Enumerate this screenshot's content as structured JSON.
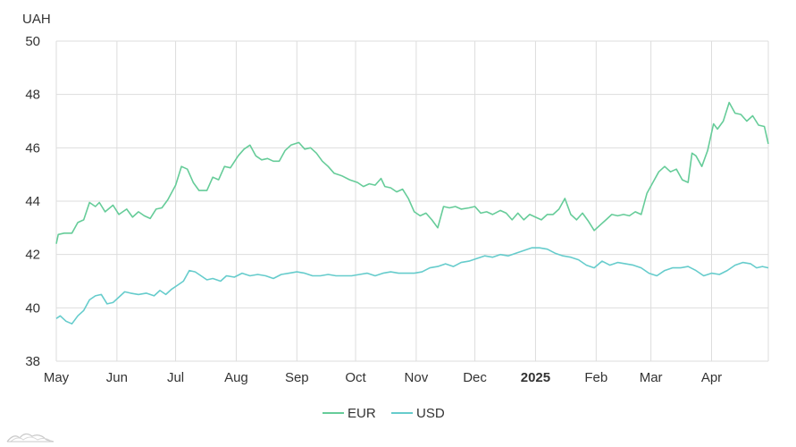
{
  "chart_data": {
    "type": "line",
    "ylabel": "UAH",
    "ylim": [
      38,
      50
    ],
    "y_ticks": [
      "50",
      "48",
      "46",
      "44",
      "42",
      "40",
      "38"
    ],
    "x_range": [
      "2024-05-01",
      "2025-04-30"
    ],
    "x_ticks": [
      {
        "label": "May",
        "date": "2024-05-01",
        "bold": false
      },
      {
        "label": "Jun",
        "date": "2024-06-01",
        "bold": false
      },
      {
        "label": "Jul",
        "date": "2024-07-01",
        "bold": false
      },
      {
        "label": "Aug",
        "date": "2024-08-01",
        "bold": false
      },
      {
        "label": "Sep",
        "date": "2024-09-01",
        "bold": false
      },
      {
        "label": "Oct",
        "date": "2024-10-01",
        "bold": false
      },
      {
        "label": "Nov",
        "date": "2024-11-01",
        "bold": false
      },
      {
        "label": "Dec",
        "date": "2024-12-01",
        "bold": false
      },
      {
        "label": "2025",
        "date": "2025-01-01",
        "bold": true
      },
      {
        "label": "Feb",
        "date": "2025-02-01",
        "bold": false
      },
      {
        "label": "Mar",
        "date": "2025-03-01",
        "bold": false
      },
      {
        "label": "Apr",
        "date": "2025-04-01",
        "bold": false
      }
    ],
    "grid": true,
    "legend_position": "bottom-center",
    "series": [
      {
        "name": "EUR",
        "color": "#66cc99",
        "points": [
          [
            "2024-05-01",
            42.4
          ],
          [
            "2024-05-02",
            42.75
          ],
          [
            "2024-05-05",
            42.8
          ],
          [
            "2024-05-09",
            42.8
          ],
          [
            "2024-05-12",
            43.2
          ],
          [
            "2024-05-15",
            43.3
          ],
          [
            "2024-05-18",
            43.95
          ],
          [
            "2024-05-21",
            43.8
          ],
          [
            "2024-05-23",
            43.95
          ],
          [
            "2024-05-26",
            43.6
          ],
          [
            "2024-05-30",
            43.85
          ],
          [
            "2024-06-02",
            43.5
          ],
          [
            "2024-06-06",
            43.7
          ],
          [
            "2024-06-09",
            43.4
          ],
          [
            "2024-06-12",
            43.6
          ],
          [
            "2024-06-15",
            43.45
          ],
          [
            "2024-06-18",
            43.35
          ],
          [
            "2024-06-21",
            43.7
          ],
          [
            "2024-06-24",
            43.75
          ],
          [
            "2024-06-27",
            44.05
          ],
          [
            "2024-07-01",
            44.6
          ],
          [
            "2024-07-04",
            45.3
          ],
          [
            "2024-07-07",
            45.2
          ],
          [
            "2024-07-10",
            44.7
          ],
          [
            "2024-07-13",
            44.4
          ],
          [
            "2024-07-17",
            44.4
          ],
          [
            "2024-07-20",
            44.9
          ],
          [
            "2024-07-23",
            44.8
          ],
          [
            "2024-07-26",
            45.3
          ],
          [
            "2024-07-29",
            45.25
          ],
          [
            "2024-08-02",
            45.7
          ],
          [
            "2024-08-05",
            45.95
          ],
          [
            "2024-08-08",
            46.1
          ],
          [
            "2024-08-11",
            45.7
          ],
          [
            "2024-08-14",
            45.55
          ],
          [
            "2024-08-17",
            45.6
          ],
          [
            "2024-08-20",
            45.5
          ],
          [
            "2024-08-23",
            45.5
          ],
          [
            "2024-08-26",
            45.9
          ],
          [
            "2024-08-29",
            46.1
          ],
          [
            "2024-09-02",
            46.2
          ],
          [
            "2024-09-05",
            45.95
          ],
          [
            "2024-09-08",
            46.0
          ],
          [
            "2024-09-11",
            45.8
          ],
          [
            "2024-09-14",
            45.5
          ],
          [
            "2024-09-17",
            45.3
          ],
          [
            "2024-09-20",
            45.05
          ],
          [
            "2024-09-24",
            44.95
          ],
          [
            "2024-09-28",
            44.8
          ],
          [
            "2024-10-02",
            44.7
          ],
          [
            "2024-10-05",
            44.55
          ],
          [
            "2024-10-08",
            44.65
          ],
          [
            "2024-10-11",
            44.6
          ],
          [
            "2024-10-14",
            44.85
          ],
          [
            "2024-10-16",
            44.55
          ],
          [
            "2024-10-19",
            44.5
          ],
          [
            "2024-10-22",
            44.35
          ],
          [
            "2024-10-25",
            44.45
          ],
          [
            "2024-10-28",
            44.1
          ],
          [
            "2024-10-31",
            43.6
          ],
          [
            "2024-11-03",
            43.45
          ],
          [
            "2024-11-06",
            43.55
          ],
          [
            "2024-11-09",
            43.3
          ],
          [
            "2024-11-12",
            43.0
          ],
          [
            "2024-11-15",
            43.8
          ],
          [
            "2024-11-18",
            43.75
          ],
          [
            "2024-11-21",
            43.8
          ],
          [
            "2024-11-24",
            43.7
          ],
          [
            "2024-11-28",
            43.75
          ],
          [
            "2024-12-01",
            43.8
          ],
          [
            "2024-12-04",
            43.55
          ],
          [
            "2024-12-07",
            43.6
          ],
          [
            "2024-12-10",
            43.5
          ],
          [
            "2024-12-14",
            43.65
          ],
          [
            "2024-12-17",
            43.55
          ],
          [
            "2024-12-20",
            43.3
          ],
          [
            "2024-12-23",
            43.55
          ],
          [
            "2024-12-26",
            43.3
          ],
          [
            "2024-12-29",
            43.5
          ],
          [
            "2025-01-01",
            43.4
          ],
          [
            "2025-01-04",
            43.3
          ],
          [
            "2025-01-07",
            43.5
          ],
          [
            "2025-01-10",
            43.5
          ],
          [
            "2025-01-13",
            43.7
          ],
          [
            "2025-01-16",
            44.1
          ],
          [
            "2025-01-19",
            43.5
          ],
          [
            "2025-01-22",
            43.3
          ],
          [
            "2025-01-25",
            43.55
          ],
          [
            "2025-01-28",
            43.25
          ],
          [
            "2025-01-31",
            42.9
          ],
          [
            "2025-02-03",
            43.1
          ],
          [
            "2025-02-06",
            43.3
          ],
          [
            "2025-02-09",
            43.5
          ],
          [
            "2025-02-12",
            43.45
          ],
          [
            "2025-02-15",
            43.5
          ],
          [
            "2025-02-18",
            43.45
          ],
          [
            "2025-02-21",
            43.6
          ],
          [
            "2025-02-24",
            43.5
          ],
          [
            "2025-02-27",
            44.3
          ],
          [
            "2025-03-02",
            44.7
          ],
          [
            "2025-03-05",
            45.1
          ],
          [
            "2025-03-08",
            45.3
          ],
          [
            "2025-03-11",
            45.1
          ],
          [
            "2025-03-14",
            45.2
          ],
          [
            "2025-03-17",
            44.8
          ],
          [
            "2025-03-20",
            44.7
          ],
          [
            "2025-03-22",
            45.8
          ],
          [
            "2025-03-24",
            45.7
          ],
          [
            "2025-03-27",
            45.3
          ],
          [
            "2025-03-30",
            45.9
          ],
          [
            "2025-04-02",
            46.9
          ],
          [
            "2025-04-04",
            46.7
          ],
          [
            "2025-04-07",
            47.0
          ],
          [
            "2025-04-10",
            47.7
          ],
          [
            "2025-04-13",
            47.3
          ],
          [
            "2025-04-16",
            47.25
          ],
          [
            "2025-04-19",
            47.0
          ],
          [
            "2025-04-22",
            47.2
          ],
          [
            "2025-04-25",
            46.85
          ],
          [
            "2025-04-28",
            46.8
          ],
          [
            "2025-04-30",
            46.15
          ]
        ]
      },
      {
        "name": "USD",
        "color": "#66cccc",
        "points": [
          [
            "2024-05-01",
            39.6
          ],
          [
            "2024-05-03",
            39.7
          ],
          [
            "2024-05-06",
            39.5
          ],
          [
            "2024-05-09",
            39.4
          ],
          [
            "2024-05-12",
            39.7
          ],
          [
            "2024-05-15",
            39.9
          ],
          [
            "2024-05-18",
            40.3
          ],
          [
            "2024-05-21",
            40.45
          ],
          [
            "2024-05-24",
            40.5
          ],
          [
            "2024-05-27",
            40.15
          ],
          [
            "2024-05-30",
            40.2
          ],
          [
            "2024-06-02",
            40.4
          ],
          [
            "2024-06-05",
            40.6
          ],
          [
            "2024-06-08",
            40.55
          ],
          [
            "2024-06-12",
            40.5
          ],
          [
            "2024-06-16",
            40.55
          ],
          [
            "2024-06-20",
            40.45
          ],
          [
            "2024-06-23",
            40.65
          ],
          [
            "2024-06-26",
            40.5
          ],
          [
            "2024-06-29",
            40.7
          ],
          [
            "2024-07-02",
            40.85
          ],
          [
            "2024-07-05",
            41.0
          ],
          [
            "2024-07-08",
            41.4
          ],
          [
            "2024-07-11",
            41.35
          ],
          [
            "2024-07-14",
            41.2
          ],
          [
            "2024-07-17",
            41.05
          ],
          [
            "2024-07-20",
            41.1
          ],
          [
            "2024-07-24",
            41.0
          ],
          [
            "2024-07-27",
            41.2
          ],
          [
            "2024-07-31",
            41.15
          ],
          [
            "2024-08-04",
            41.3
          ],
          [
            "2024-08-08",
            41.2
          ],
          [
            "2024-08-12",
            41.25
          ],
          [
            "2024-08-16",
            41.2
          ],
          [
            "2024-08-20",
            41.1
          ],
          [
            "2024-08-24",
            41.25
          ],
          [
            "2024-08-28",
            41.3
          ],
          [
            "2024-09-01",
            41.35
          ],
          [
            "2024-09-05",
            41.3
          ],
          [
            "2024-09-09",
            41.2
          ],
          [
            "2024-09-13",
            41.2
          ],
          [
            "2024-09-17",
            41.25
          ],
          [
            "2024-09-21",
            41.2
          ],
          [
            "2024-09-25",
            41.2
          ],
          [
            "2024-09-29",
            41.2
          ],
          [
            "2024-10-03",
            41.25
          ],
          [
            "2024-10-07",
            41.3
          ],
          [
            "2024-10-11",
            41.2
          ],
          [
            "2024-10-15",
            41.3
          ],
          [
            "2024-10-19",
            41.35
          ],
          [
            "2024-10-23",
            41.3
          ],
          [
            "2024-10-27",
            41.3
          ],
          [
            "2024-10-31",
            41.3
          ],
          [
            "2024-11-04",
            41.35
          ],
          [
            "2024-11-08",
            41.5
          ],
          [
            "2024-11-12",
            41.55
          ],
          [
            "2024-11-16",
            41.65
          ],
          [
            "2024-11-20",
            41.55
          ],
          [
            "2024-11-24",
            41.7
          ],
          [
            "2024-11-28",
            41.75
          ],
          [
            "2024-12-02",
            41.85
          ],
          [
            "2024-12-06",
            41.95
          ],
          [
            "2024-12-10",
            41.9
          ],
          [
            "2024-12-14",
            42.0
          ],
          [
            "2024-12-18",
            41.95
          ],
          [
            "2024-12-22",
            42.05
          ],
          [
            "2024-12-26",
            42.15
          ],
          [
            "2024-12-30",
            42.25
          ],
          [
            "2025-01-03",
            42.25
          ],
          [
            "2025-01-07",
            42.2
          ],
          [
            "2025-01-11",
            42.05
          ],
          [
            "2025-01-15",
            41.95
          ],
          [
            "2025-01-19",
            41.9
          ],
          [
            "2025-01-23",
            41.8
          ],
          [
            "2025-01-27",
            41.6
          ],
          [
            "2025-01-31",
            41.5
          ],
          [
            "2025-02-04",
            41.75
          ],
          [
            "2025-02-08",
            41.6
          ],
          [
            "2025-02-12",
            41.7
          ],
          [
            "2025-02-16",
            41.65
          ],
          [
            "2025-02-20",
            41.6
          ],
          [
            "2025-02-24",
            41.5
          ],
          [
            "2025-02-28",
            41.3
          ],
          [
            "2025-03-04",
            41.2
          ],
          [
            "2025-03-08",
            41.4
          ],
          [
            "2025-03-12",
            41.5
          ],
          [
            "2025-03-16",
            41.5
          ],
          [
            "2025-03-20",
            41.55
          ],
          [
            "2025-03-24",
            41.4
          ],
          [
            "2025-03-28",
            41.2
          ],
          [
            "2025-04-01",
            41.3
          ],
          [
            "2025-04-05",
            41.25
          ],
          [
            "2025-04-09",
            41.4
          ],
          [
            "2025-04-13",
            41.6
          ],
          [
            "2025-04-17",
            41.7
          ],
          [
            "2025-04-21",
            41.65
          ],
          [
            "2025-04-24",
            41.5
          ],
          [
            "2025-04-27",
            41.55
          ],
          [
            "2025-04-30",
            41.5
          ]
        ]
      }
    ]
  }
}
